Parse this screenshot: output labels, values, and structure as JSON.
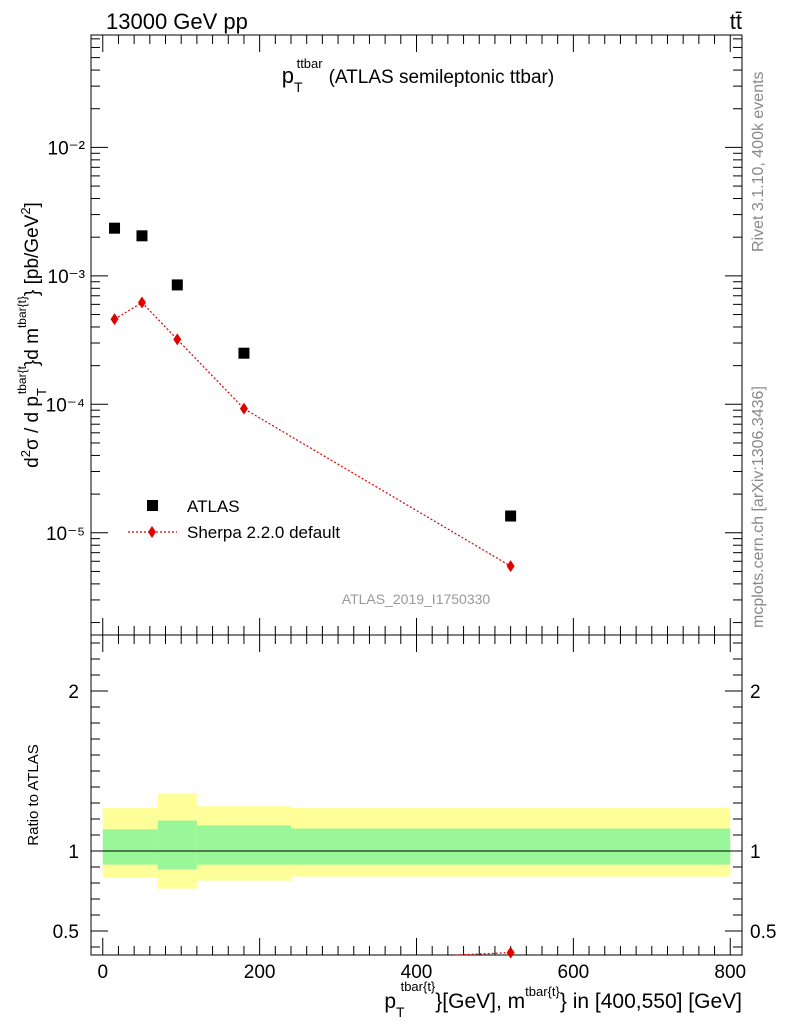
{
  "header": {
    "left": "13000 GeV pp",
    "right": "tt̄"
  },
  "side_labels": {
    "rivet": "Rivet 3.1.10,  400k events",
    "mcplots": "mcplots.cern.ch [arXiv:1306.3436]"
  },
  "chart_data": [
    {
      "type": "scatter",
      "title": "p_T^{ttbar} (ATLAS semileptonic ttbar)",
      "title_main": "p",
      "title_sub": "T",
      "title_sup": "ttbar",
      "title_rest": "(ATLAS semileptonic ttbar)",
      "analysis_label": "ATLAS_2019_I1750330",
      "ylabel": "d²σ / d p_T^{tbar{t}}d m^{tbar{t}} [pb/GeV²]",
      "yscale": "log",
      "ylim": [
        1.6e-06,
        0.075
      ],
      "xlim": [
        -15,
        815
      ],
      "y_tick_labels": [
        "10⁻²",
        "10⁻³",
        "10⁻⁴",
        "10⁻⁵"
      ],
      "y_tick_values": [
        0.01,
        0.001,
        0.0001,
        1e-05
      ],
      "legend": {
        "position": "lower-left",
        "entries": [
          "ATLAS",
          "Sherpa 2.2.0 default"
        ]
      },
      "series": [
        {
          "name": "ATLAS",
          "marker": "square",
          "color": "#000000",
          "x": [
            15,
            50,
            95,
            180,
            520
          ],
          "y": [
            0.00235,
            0.00205,
            0.00085,
            0.00025,
            1.35e-05
          ]
        },
        {
          "name": "Sherpa 2.2.0 default",
          "marker": "diamond",
          "color": "#e00000",
          "linestyle": "dotted",
          "x": [
            15,
            50,
            95,
            180,
            520
          ],
          "y": [
            0.00046,
            0.00062,
            0.00032,
            9.25e-05,
            5.5e-06
          ]
        }
      ]
    },
    {
      "type": "line",
      "ylabel": "Ratio to ATLAS",
      "xlabel": "p_T^{tbar{t}}[GeV], m^{tbar{t}} in [400,550] [GeV]",
      "xlabel_parts": {
        "p": "p",
        "sub": "T",
        "sup1": "tbar{t}",
        "mid": "}[GeV], m",
        "sup2": "tbar{t}",
        "tail": "} in [400,550] [GeV]"
      },
      "ylim": [
        0.35,
        2.35
      ],
      "xlim": [
        -15,
        815
      ],
      "y_ticks": [
        0.5,
        1,
        2
      ],
      "y_tick_labels": [
        "0.5",
        "1",
        "2"
      ],
      "x_ticks": [
        0,
        200,
        400,
        600,
        800
      ],
      "x_tick_labels": [
        "0",
        "200",
        "400",
        "600",
        "800"
      ],
      "bands": [
        {
          "x_range": [
            0,
            70
          ],
          "green": [
            0.915,
            1.135
          ],
          "yellow": [
            0.835,
            1.27
          ]
        },
        {
          "x_range": [
            70,
            120
          ],
          "green": [
            0.885,
            1.19
          ],
          "yellow": [
            0.765,
            1.36
          ]
        },
        {
          "x_range": [
            120,
            240
          ],
          "green": [
            0.915,
            1.16
          ],
          "yellow": [
            0.815,
            1.28
          ]
        },
        {
          "x_range": [
            240,
            800
          ],
          "green": [
            0.915,
            1.14
          ],
          "yellow": [
            0.84,
            1.27
          ]
        }
      ],
      "band_colors": {
        "green": "#99f799",
        "yellow": "#ffff99"
      },
      "series": [
        {
          "name": "Sherpa 2.2.0 default",
          "color": "#e00000",
          "x": [
            450,
            520
          ],
          "y": [
            0.33,
            0.365
          ]
        }
      ]
    }
  ]
}
